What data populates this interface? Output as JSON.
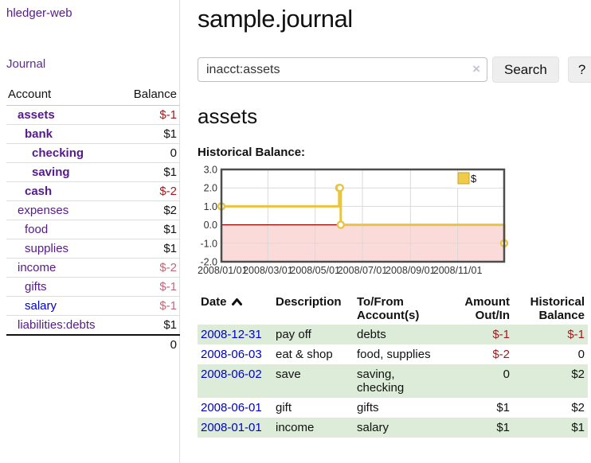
{
  "app": {
    "brand": "hledger-web",
    "nav_journal": "Journal"
  },
  "sidebar": {
    "header": {
      "account": "Account",
      "balance": "Balance"
    },
    "accounts": [
      {
        "name": "assets",
        "level": 0,
        "balance": "$-1",
        "bold": true
      },
      {
        "name": "bank",
        "level": 1,
        "balance": "$1",
        "bold": true
      },
      {
        "name": "checking",
        "level": 2,
        "balance": "0",
        "bold": true
      },
      {
        "name": "saving",
        "level": 2,
        "balance": "$1",
        "bold": true
      },
      {
        "name": "cash",
        "level": 1,
        "balance": "$-2",
        "bold": true
      },
      {
        "name": "expenses",
        "level": 0,
        "balance": "$2"
      },
      {
        "name": "food",
        "level": 1,
        "balance": "$1"
      },
      {
        "name": "supplies",
        "level": 1,
        "balance": "$1"
      },
      {
        "name": "income",
        "level": 0,
        "balance": "$-2"
      },
      {
        "name": "gifts",
        "level": 1,
        "balance": "$-1"
      },
      {
        "name": "salary",
        "level": 1,
        "balance": "$-1",
        "blue": true
      },
      {
        "name": "liabilities:debts",
        "level": 0,
        "balance": "$1"
      }
    ],
    "total": "0"
  },
  "header": {
    "title": "sample.journal"
  },
  "search": {
    "value": "inacct:assets",
    "clear_icon": "×",
    "button_label": "Search",
    "help_label": "?"
  },
  "account_page": {
    "title": "assets",
    "chart_label": "Historical Balance:"
  },
  "chart_data": {
    "type": "line",
    "step": true,
    "title": "Historical Balance",
    "x_start": "2008-01-01",
    "x_range_days": 365,
    "ylim": [
      -2,
      3
    ],
    "grid": true,
    "legend_position": "top-right",
    "series": [
      {
        "name": "$",
        "color": "#e9c342",
        "points": [
          {
            "date": "2008-01-01",
            "value": 1
          },
          {
            "date": "2008-06-01",
            "value": 2
          },
          {
            "date": "2008-06-02",
            "value": 2
          },
          {
            "date": "2008-06-03",
            "value": 0
          },
          {
            "date": "2008-12-31",
            "value": -1
          }
        ]
      }
    ],
    "y_ticks": [
      {
        "label": "3.0",
        "value": 3
      },
      {
        "label": "2.0",
        "value": 2
      },
      {
        "label": "1.0",
        "value": 1
      },
      {
        "label": "0.0",
        "value": 0
      },
      {
        "label": "-1.0",
        "value": -1
      },
      {
        "label": "-2.0",
        "value": -2
      }
    ],
    "x_ticks": [
      {
        "label": "2008/01/01",
        "date": "2008-01-01"
      },
      {
        "label": "2008/03/01",
        "date": "2008-03-01"
      },
      {
        "label": "2008/05/01",
        "date": "2008-05-01"
      },
      {
        "label": "2008/07/01",
        "date": "2008-07-01"
      },
      {
        "label": "2008/09/01",
        "date": "2008-09-01"
      },
      {
        "label": "2008/11/01",
        "date": "2008-11-01"
      }
    ],
    "colors": {
      "line": "#e9c342",
      "marker_fill": "#ffffff",
      "legend_fill": "#eecb48",
      "legend_border": "#c9a227",
      "negative_region": "#fbdada",
      "zero_line": "#900000",
      "gridline": "#d9d9d9",
      "border": "#4d4d4d",
      "tick_text": "#333333"
    }
  },
  "register": {
    "columns": {
      "date": "Date",
      "description": "Description",
      "accounts": "To/From Account(s)",
      "amount": "Amount Out/In",
      "balance": "Historical Balance"
    },
    "rows": [
      {
        "date": "2008-12-31",
        "description": "pay off",
        "accounts": "debts",
        "amount": "$-1",
        "balance": "$-1"
      },
      {
        "date": "2008-06-03",
        "description": "eat & shop",
        "accounts": "food, supplies",
        "amount": "$-2",
        "balance": "0"
      },
      {
        "date": "2008-06-02",
        "description": "save",
        "accounts": "saving, checking",
        "amount": "0",
        "balance": "$2"
      },
      {
        "date": "2008-06-01",
        "description": "gift",
        "accounts": "gifts",
        "amount": "$1",
        "balance": "$2"
      },
      {
        "date": "2008-01-01",
        "description": "income",
        "accounts": "salary",
        "amount": "$1",
        "balance": "$1"
      }
    ]
  }
}
